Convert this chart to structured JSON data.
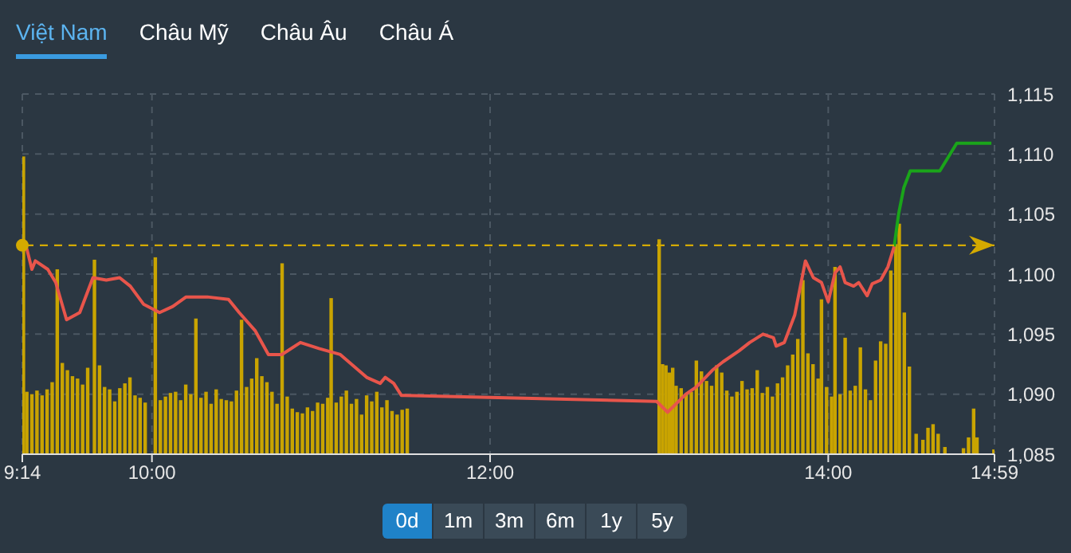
{
  "chart_data": {
    "type": "line",
    "annotations": [
      "Việt Nam",
      "Châu Mỹ",
      "Châu Âu",
      "Châu Á",
      "0d",
      "1m",
      "3m",
      "6m",
      "1y",
      "5y"
    ],
    "xlim": [
      9.2333,
      14.9833
    ],
    "xticks": [
      {
        "value": 9.2333,
        "label": "9:14"
      },
      {
        "value": 10,
        "label": "10:00"
      },
      {
        "value": 12,
        "label": "12:00"
      },
      {
        "value": 14,
        "label": "14:00"
      },
      {
        "value": 14.9833,
        "label": "14:59"
      }
    ],
    "ylim": [
      1085,
      1115
    ],
    "yticks": [
      {
        "value": 1085,
        "label": "1,085"
      },
      {
        "value": 1090,
        "label": "1,090"
      },
      {
        "value": 1095,
        "label": "1,095"
      },
      {
        "value": 1100,
        "label": "1,100"
      },
      {
        "value": 1105,
        "label": "1,105"
      },
      {
        "value": 1110,
        "label": "1,110"
      },
      {
        "value": 1115,
        "label": "1,115"
      }
    ],
    "grid": true,
    "marker": "none",
    "line_style": "solid",
    "ref_lines": [
      {
        "axis": "y",
        "value": 1102.4,
        "color": "#d4aa00",
        "line_style": "dashed"
      }
    ],
    "series": [
      {
        "type": "bar",
        "color": "#c9a400",
        "x": [
          9.24,
          9.26,
          9.29,
          9.32,
          9.35,
          9.38,
          9.41,
          9.44,
          9.47,
          9.5,
          9.53,
          9.56,
          9.59,
          9.62,
          9.66,
          9.69,
          9.72,
          9.75,
          9.78,
          9.81,
          9.84,
          9.87,
          9.9,
          9.93,
          9.96,
          10.02,
          10.05,
          10.08,
          10.11,
          10.14,
          10.17,
          10.2,
          10.23,
          10.26,
          10.29,
          10.32,
          10.35,
          10.38,
          10.41,
          10.44,
          10.47,
          10.5,
          10.53,
          10.56,
          10.59,
          10.62,
          10.65,
          10.68,
          10.71,
          10.74,
          10.77,
          10.8,
          10.83,
          10.86,
          10.89,
          10.92,
          10.95,
          10.98,
          11.01,
          11.04,
          11.06,
          11.09,
          11.12,
          11.15,
          11.18,
          11.21,
          11.24,
          11.27,
          11.3,
          11.33,
          11.36,
          11.39,
          11.42,
          11.45,
          11.48,
          11.51,
          13,
          13.02,
          13.04,
          13.06,
          13.08,
          13.1,
          13.13,
          13.16,
          13.19,
          13.22,
          13.25,
          13.28,
          13.31,
          13.34,
          13.37,
          13.4,
          13.43,
          13.46,
          13.49,
          13.52,
          13.55,
          13.58,
          13.61,
          13.64,
          13.67,
          13.7,
          13.73,
          13.76,
          13.79,
          13.82,
          13.85,
          13.88,
          13.91,
          13.94,
          13.96,
          13.99,
          14.02,
          14.04,
          14.07,
          14.1,
          14.13,
          14.16,
          14.19,
          14.22,
          14.25,
          14.28,
          14.31,
          14.34,
          14.37,
          14.4,
          14.42,
          14.45,
          14.48,
          14.52,
          14.56,
          14.59,
          14.62,
          14.65,
          14.69,
          14.8,
          14.83,
          14.86,
          14.88,
          14.98
        ],
        "values": [
          1109.8,
          1090.2,
          1090,
          1090.3,
          1089.9,
          1090.4,
          1091,
          1100.4,
          1092.6,
          1092,
          1091.5,
          1091.3,
          1090.8,
          1092.2,
          1101.2,
          1092.4,
          1090.6,
          1090.4,
          1089.4,
          1090.5,
          1090.9,
          1091.4,
          1089.9,
          1089.7,
          1089.3,
          1101.4,
          1089.5,
          1089.8,
          1090.1,
          1090.2,
          1089.5,
          1090.8,
          1090,
          1096.3,
          1089.7,
          1090.2,
          1089.2,
          1090.4,
          1089.6,
          1089.5,
          1089.4,
          1090.3,
          1096.2,
          1090.6,
          1091.3,
          1093,
          1091.5,
          1091,
          1090.2,
          1089.2,
          1100.9,
          1089.8,
          1088.8,
          1088.5,
          1088.4,
          1088.9,
          1088.6,
          1089.3,
          1089.2,
          1089.7,
          1098,
          1089.3,
          1089.8,
          1090.3,
          1089.2,
          1089.6,
          1088.3,
          1089.9,
          1089.4,
          1090.2,
          1088.9,
          1089.5,
          1088.6,
          1088.3,
          1088.7,
          1088.8,
          1102.9,
          1092.5,
          1092.4,
          1091.8,
          1092.2,
          1090.7,
          1090.5,
          1090,
          1090.2,
          1092.8,
          1091.9,
          1091.1,
          1090.7,
          1092.4,
          1091.8,
          1090.3,
          1089.8,
          1090.2,
          1091.1,
          1090.4,
          1090.5,
          1092,
          1090.1,
          1090.6,
          1089.8,
          1090.9,
          1091.4,
          1092.4,
          1093.3,
          1094.6,
          1099.5,
          1093.4,
          1092.5,
          1091.3,
          1097.9,
          1090.6,
          1089.8,
          1100.6,
          1090,
          1094.7,
          1090.3,
          1090.7,
          1093.9,
          1090.4,
          1089.5,
          1092.8,
          1094.4,
          1094.2,
          1100.3,
          1102.5,
          1104.2,
          1096.8,
          1092.3,
          1086.7,
          1086.2,
          1087.2,
          1087.5,
          1086.7,
          1085.6,
          1085.5,
          1086.4,
          1088.8,
          1086.4,
          1085.4
        ]
      },
      {
        "type": "line",
        "color": "#e8554b",
        "x": [
          9.2333,
          9.26,
          9.29,
          9.31,
          9.384,
          9.431,
          9.495,
          9.573,
          9.651,
          9.73,
          9.809,
          9.872,
          9.95,
          10.045,
          10.123,
          10.202,
          10.328,
          10.453,
          10.516,
          10.61,
          10.689,
          10.768,
          10.878,
          10.988,
          11.114,
          11.27,
          11.35,
          11.38,
          11.43,
          11.475,
          12.985,
          13.05,
          13.158,
          13.22,
          13.315,
          13.378,
          13.472,
          13.535,
          13.614,
          13.676,
          13.692,
          13.74,
          13.802,
          13.865,
          13.912,
          13.96,
          14.0,
          14.04,
          14.07,
          14.1,
          14.15,
          14.18,
          14.23,
          14.26,
          14.31,
          14.353,
          14.39
        ],
        "values": [
          1102.1,
          1102.1,
          1100.4,
          1101.1,
          1100.4,
          1099.3,
          1096.2,
          1096.8,
          1099.7,
          1099.5,
          1099.7,
          1099,
          1097.5,
          1096.8,
          1097.3,
          1098.1,
          1098.1,
          1097.9,
          1096.8,
          1095.3,
          1093.3,
          1093.3,
          1094.3,
          1093.8,
          1093.3,
          1091.4,
          1090.9,
          1091.4,
          1090.9,
          1089.9,
          1089.4,
          1088.5,
          1090,
          1090.6,
          1092,
          1092.7,
          1093.6,
          1094.3,
          1095,
          1094.7,
          1094,
          1094.3,
          1096.6,
          1101.1,
          1099.7,
          1099.3,
          1097.7,
          1100.1,
          1100.6,
          1099.3,
          1099,
          1099.3,
          1098.2,
          1099.2,
          1099.5,
          1100.6,
          1102.3
        ]
      },
      {
        "type": "line",
        "color": "#1aa51a",
        "x": [
          14.39,
          14.416,
          14.447,
          14.485,
          14.66,
          14.76,
          14.965
        ],
        "values": [
          1102.3,
          1105,
          1107.2,
          1108.6,
          1108.6,
          1110.9,
          1110.9
        ]
      }
    ]
  }
}
